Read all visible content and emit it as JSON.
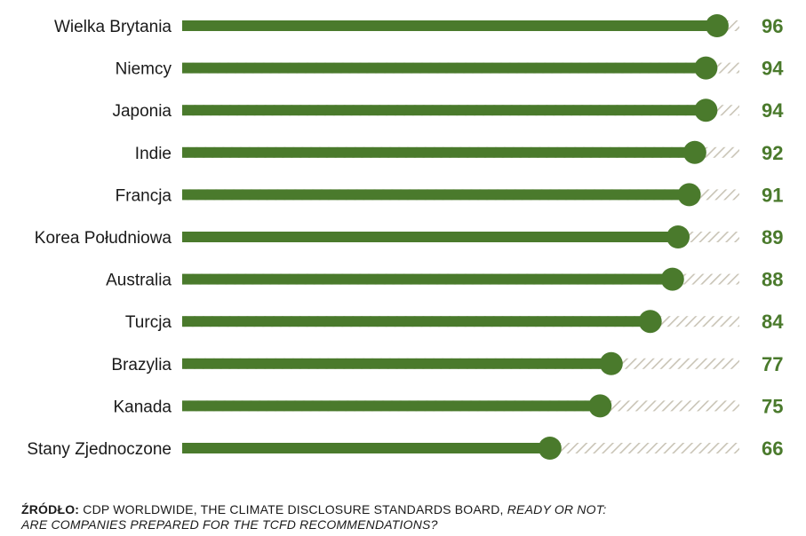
{
  "chart_data": {
    "type": "bar",
    "categories": [
      "Wielka Brytania",
      "Niemcy",
      "Japonia",
      "Indie",
      "Francja",
      "Korea Południowa",
      "Australia",
      "Turcja",
      "Brazylia",
      "Kanada",
      "Stany Zjednoczone"
    ],
    "values": [
      96,
      94,
      94,
      92,
      91,
      89,
      88,
      84,
      77,
      75,
      66
    ],
    "value_labels": [
      "96",
      "94",
      "94",
      "92",
      "91",
      "89",
      "88",
      "84",
      "77",
      "75",
      "66"
    ],
    "xlim": [
      0,
      100
    ],
    "orientation": "horizontal",
    "grid": false,
    "legend": "none"
  },
  "colors": {
    "bar": "#4a7a2c",
    "value_text": "#4a7a2c",
    "remainder_hatch": "#c9c4b6",
    "label_text": "#1a1a1a"
  },
  "source": {
    "label": "ŹRÓDŁO:",
    "text": "CDP WORLDWIDE, THE CLIMATE DISCLOSURE STANDARDS BOARD,",
    "title_line1": "READY OR NOT:",
    "title_line2": "ARE COMPANIES PREPARED FOR THE TCFD RECOMMENDATIONS?"
  }
}
